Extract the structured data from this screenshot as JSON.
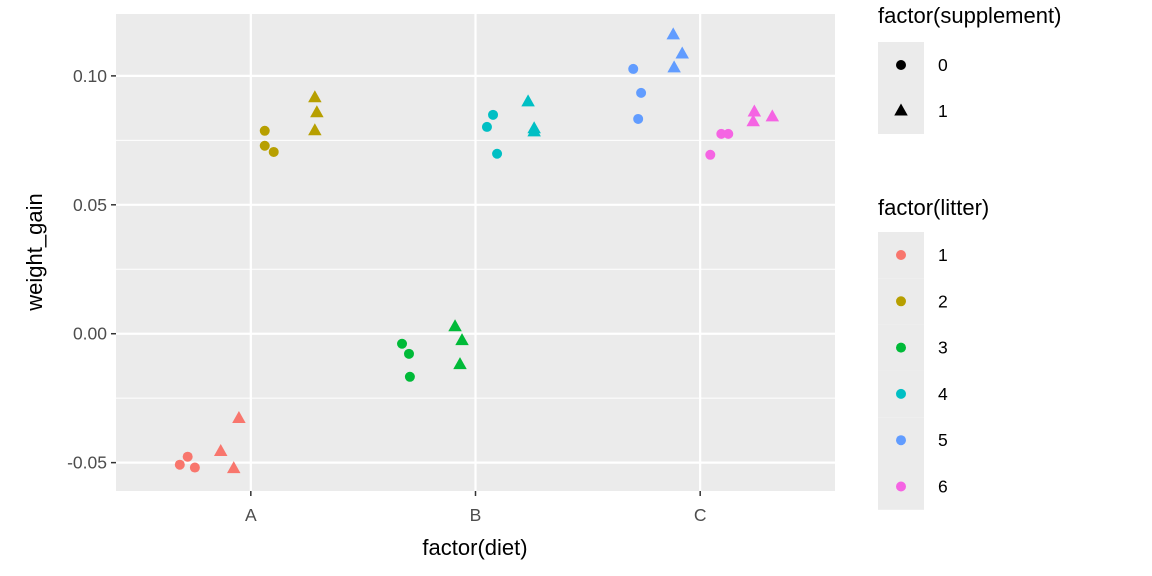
{
  "chart_data": {
    "type": "scatter",
    "xlabel": "factor(diet)",
    "ylabel": "weight_gain",
    "x_categories": [
      "A",
      "B",
      "C"
    ],
    "xlim": [
      0.4,
      3.6
    ],
    "ylim": [
      -0.061,
      0.124
    ],
    "y_ticks": [
      -0.05,
      0.0,
      0.05,
      0.1
    ],
    "y_tick_labels": [
      "-0.05",
      "0.00",
      "0.05",
      "0.10"
    ],
    "grid": true,
    "legend_position": "right",
    "shape_legend": {
      "title": "factor(supplement)",
      "entries": [
        {
          "label": "0",
          "shape": "circle"
        },
        {
          "label": "1",
          "shape": "triangle"
        }
      ]
    },
    "color_legend": {
      "title": "factor(litter)",
      "entries": [
        {
          "label": "1",
          "color": "#F8766D"
        },
        {
          "label": "2",
          "color": "#B79F00"
        },
        {
          "label": "3",
          "color": "#00BA38"
        },
        {
          "label": "4",
          "color": "#00BFC4"
        },
        {
          "label": "5",
          "color": "#619CFF"
        },
        {
          "label": "6",
          "color": "#F564E3"
        }
      ]
    },
    "points": [
      {
        "x": 0.684,
        "y": -0.0508,
        "litter": "1",
        "supplement": "0"
      },
      {
        "x": 0.719,
        "y": -0.0477,
        "litter": "1",
        "supplement": "0"
      },
      {
        "x": 0.751,
        "y": -0.0519,
        "litter": "1",
        "supplement": "0"
      },
      {
        "x": 0.866,
        "y": -0.0457,
        "litter": "1",
        "supplement": "1"
      },
      {
        "x": 0.947,
        "y": -0.0329,
        "litter": "1",
        "supplement": "1"
      },
      {
        "x": 0.924,
        "y": -0.0523,
        "litter": "1",
        "supplement": "1"
      },
      {
        "x": 1.062,
        "y": 0.0787,
        "litter": "2",
        "supplement": "0"
      },
      {
        "x": 1.062,
        "y": 0.0729,
        "litter": "2",
        "supplement": "0"
      },
      {
        "x": 1.102,
        "y": 0.0705,
        "litter": "2",
        "supplement": "0"
      },
      {
        "x": 1.285,
        "y": 0.0915,
        "litter": "2",
        "supplement": "1"
      },
      {
        "x": 1.294,
        "y": 0.0857,
        "litter": "2",
        "supplement": "1"
      },
      {
        "x": 1.285,
        "y": 0.0787,
        "litter": "2",
        "supplement": "1"
      },
      {
        "x": 1.673,
        "y": -0.0039,
        "litter": "3",
        "supplement": "0"
      },
      {
        "x": 1.704,
        "y": -0.0078,
        "litter": "3",
        "supplement": "0"
      },
      {
        "x": 1.708,
        "y": -0.0167,
        "litter": "3",
        "supplement": "0"
      },
      {
        "x": 1.909,
        "y": 0.0027,
        "litter": "3",
        "supplement": "1"
      },
      {
        "x": 1.94,
        "y": -0.0027,
        "litter": "3",
        "supplement": "1"
      },
      {
        "x": 1.931,
        "y": -0.012,
        "litter": "3",
        "supplement": "1"
      },
      {
        "x": 2.051,
        "y": 0.0802,
        "litter": "4",
        "supplement": "0"
      },
      {
        "x": 2.078,
        "y": 0.0849,
        "litter": "4",
        "supplement": "0"
      },
      {
        "x": 2.096,
        "y": 0.0698,
        "litter": "4",
        "supplement": "0"
      },
      {
        "x": 2.234,
        "y": 0.0899,
        "litter": "4",
        "supplement": "1"
      },
      {
        "x": 2.261,
        "y": 0.0795,
        "litter": "4",
        "supplement": "1"
      },
      {
        "x": 2.261,
        "y": 0.0783,
        "litter": "4",
        "supplement": "1"
      },
      {
        "x": 2.702,
        "y": 0.1027,
        "litter": "5",
        "supplement": "0"
      },
      {
        "x": 2.737,
        "y": 0.0934,
        "litter": "5",
        "supplement": "0"
      },
      {
        "x": 2.724,
        "y": 0.0833,
        "litter": "5",
        "supplement": "0"
      },
      {
        "x": 2.88,
        "y": 0.1159,
        "litter": "5",
        "supplement": "1"
      },
      {
        "x": 2.92,
        "y": 0.1085,
        "litter": "5",
        "supplement": "1"
      },
      {
        "x": 2.884,
        "y": 0.1031,
        "litter": "5",
        "supplement": "1"
      },
      {
        "x": 3.045,
        "y": 0.0694,
        "litter": "6",
        "supplement": "0"
      },
      {
        "x": 3.094,
        "y": 0.0775,
        "litter": "6",
        "supplement": "0"
      },
      {
        "x": 3.125,
        "y": 0.0775,
        "litter": "6",
        "supplement": "0"
      },
      {
        "x": 3.241,
        "y": 0.086,
        "litter": "6",
        "supplement": "1"
      },
      {
        "x": 3.236,
        "y": 0.0822,
        "litter": "6",
        "supplement": "1"
      },
      {
        "x": 3.321,
        "y": 0.0841,
        "litter": "6",
        "supplement": "1"
      }
    ]
  }
}
